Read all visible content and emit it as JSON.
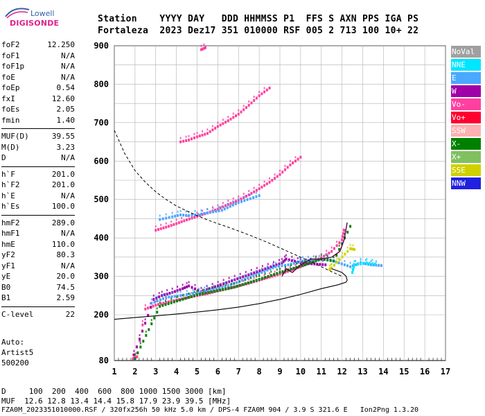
{
  "logo": {
    "line1": "Lowell",
    "line2": "DIGISONDE"
  },
  "header": {
    "row1": "Station    YYYY DAY   DDD HHMMSS P1  FFS S AXN PPS IGA PS",
    "row2": "Fortaleza  2023 Dez17 351 010000 RSF 005 2 713 100 10+ 22"
  },
  "params": [
    {
      "name": "foF2",
      "value": "12.250"
    },
    {
      "name": "foF1",
      "value": "N/A"
    },
    {
      "name": "foF1p",
      "value": "N/A"
    },
    {
      "name": "foE",
      "value": "N/A"
    },
    {
      "name": "foEp",
      "value": "0.54"
    },
    {
      "name": "fxI",
      "value": "12.60"
    },
    {
      "name": "foEs",
      "value": "2.05"
    },
    {
      "name": "fmin",
      "value": "1.40"
    },
    {
      "name": "MUF(D)",
      "value": "39.55"
    },
    {
      "name": "M(D)",
      "value": "3.23"
    },
    {
      "name": "D",
      "value": "N/A"
    },
    {
      "name": "h`F",
      "value": "201.0"
    },
    {
      "name": "h`F2",
      "value": "201.0"
    },
    {
      "name": "h`E",
      "value": "N/A"
    },
    {
      "name": "h`Es",
      "value": "100.0"
    },
    {
      "name": "hmF2",
      "value": "289.0"
    },
    {
      "name": "hmF1",
      "value": "N/A"
    },
    {
      "name": "hmE",
      "value": "110.0"
    },
    {
      "name": "yF2",
      "value": "80.3"
    },
    {
      "name": "yF1",
      "value": "N/A"
    },
    {
      "name": "yE",
      "value": "20.0"
    },
    {
      "name": "B0",
      "value": "74.5"
    },
    {
      "name": "B1",
      "value": "2.59"
    },
    {
      "name": "C-level",
      "value": "22"
    }
  ],
  "auto": {
    "line1": "Auto:",
    "line2": "Artist5",
    "line3": "500200"
  },
  "legend": [
    {
      "label": "NoVal",
      "color": "#a0a0a0"
    },
    {
      "label": "NNE",
      "color": "#00e6ff"
    },
    {
      "label": "E",
      "color": "#4aa8ff"
    },
    {
      "label": "W",
      "color": "#a000a8"
    },
    {
      "label": "Vo-",
      "color": "#ff40a0"
    },
    {
      "label": "Vo+",
      "color": "#ff0030"
    },
    {
      "label": "SSW",
      "color": "#ffb0b0"
    },
    {
      "label": "X-",
      "color": "#008000"
    },
    {
      "label": "X+",
      "color": "#80c060"
    },
    {
      "label": "SSE",
      "color": "#d0d000"
    },
    {
      "label": "NNW",
      "color": "#2020e0"
    }
  ],
  "footer": {
    "d_row": "D     100  200  400  600  800 1000 1500 3000 [km]",
    "muf_row": "MUF  12.6 12.8 13.4 14.4 15.8 17.9 23.9 39.5 [MHz]",
    "file_row": "FZA0M_2023351010000.RSF / 320fx256h 50 kHz 5.0 km / DPS-4 FZA0M 904 / 3.9 S 321.6 E   Ion2Png 1.3.20"
  },
  "chart_data": {
    "type": "scatter",
    "x_ticks": [
      "1",
      "2",
      "3",
      "4",
      "5",
      "6",
      "7",
      "8",
      "9",
      "10",
      "11",
      "12",
      "13",
      "14",
      "15",
      "16",
      "17"
    ],
    "y_ticks": [
      "80",
      "200",
      "300",
      "400",
      "500",
      "600",
      "700",
      "800",
      "900"
    ],
    "xlim": [
      1,
      17
    ],
    "ylim": [
      80,
      900
    ],
    "grid": true,
    "legend_position": "right",
    "series": [
      {
        "color": "#ff40a0",
        "points": [
          [
            1.9,
            85
          ],
          [
            2.1,
            90
          ],
          [
            2.5,
            215
          ],
          [
            3,
            225
          ],
          [
            3.5,
            232
          ],
          [
            4,
            238
          ],
          [
            4.5,
            244
          ],
          [
            5,
            250
          ],
          [
            5.5,
            255
          ],
          [
            6,
            262
          ],
          [
            6.5,
            268
          ],
          [
            7,
            275
          ],
          [
            7.5,
            282
          ],
          [
            8,
            290
          ],
          [
            8.5,
            298
          ],
          [
            9,
            306
          ],
          [
            9.5,
            315
          ],
          [
            10,
            325
          ],
          [
            10.5,
            336
          ],
          [
            11,
            348
          ],
          [
            11.5,
            365
          ],
          [
            12,
            395
          ],
          [
            12.1,
            420
          ]
        ]
      },
      {
        "color": "#a000a8",
        "points": [
          [
            1.95,
            95
          ],
          [
            2.9,
            240
          ],
          [
            3.3,
            250
          ],
          [
            3.8,
            258
          ],
          [
            4.3,
            268
          ],
          [
            4.6,
            275
          ],
          [
            5.2,
            260
          ],
          [
            9.1,
            335
          ],
          [
            9.3,
            345
          ],
          [
            10,
            335
          ],
          [
            11.2,
            330
          ]
        ]
      },
      {
        "color": "#4aa8ff",
        "points": [
          [
            2.8,
            230
          ],
          [
            3.5,
            245
          ],
          [
            4.2,
            250
          ],
          [
            4.8,
            255
          ],
          [
            5.5,
            262
          ],
          [
            6.5,
            275
          ],
          [
            8.8,
            325
          ],
          [
            9.4,
            330
          ],
          [
            10.1,
            340
          ],
          [
            11.3,
            345
          ],
          [
            12.4,
            325
          ],
          [
            12.9,
            335
          ],
          [
            13.4,
            330
          ],
          [
            13.9,
            328
          ]
        ]
      },
      {
        "color": "#00e6ff",
        "points": [
          [
            12.5,
            310
          ],
          [
            12.6,
            330
          ],
          [
            13.2,
            335
          ],
          [
            13.6,
            332
          ]
        ]
      },
      {
        "color": "#008000",
        "points": [
          [
            2.0,
            85
          ],
          [
            3.2,
            222
          ],
          [
            5.0,
            252
          ],
          [
            6.8,
            272
          ],
          [
            8.0,
            292
          ],
          [
            9.0,
            310
          ],
          [
            10.2,
            330
          ],
          [
            11.0,
            345
          ],
          [
            11.6,
            340
          ],
          [
            12.4,
            430
          ]
        ]
      },
      {
        "color": "#d0d000",
        "points": [
          [
            11.4,
            318
          ],
          [
            11.5,
            322
          ],
          [
            12.4,
            372
          ],
          [
            12.6,
            370
          ]
        ]
      },
      {
        "color": "#ff40a0",
        "points": [
          [
            3.0,
            420
          ],
          [
            3.5,
            428
          ],
          [
            4.0,
            437
          ],
          [
            4.5,
            447
          ],
          [
            5.0,
            456
          ],
          [
            5.5,
            465
          ],
          [
            6.0,
            475
          ],
          [
            6.5,
            487
          ],
          [
            7.0,
            498
          ],
          [
            7.5,
            512
          ],
          [
            8.0,
            528
          ],
          [
            8.5,
            545
          ],
          [
            9.0,
            565
          ],
          [
            9.5,
            590
          ],
          [
            10.0,
            610
          ]
        ]
      },
      {
        "color": "#4aa8ff",
        "points": [
          [
            3.2,
            448
          ],
          [
            3.8,
            455
          ],
          [
            4.2,
            460
          ],
          [
            4.6,
            458
          ],
          [
            5.2,
            462
          ],
          [
            6.2,
            472
          ],
          [
            7.0,
            492
          ],
          [
            8.0,
            510
          ]
        ]
      },
      {
        "color": "#ff40a0",
        "points": [
          [
            4.2,
            650
          ],
          [
            4.6,
            655
          ],
          [
            5.0,
            663
          ],
          [
            5.5,
            672
          ],
          [
            6.0,
            690
          ],
          [
            6.5,
            705
          ],
          [
            7.0,
            722
          ],
          [
            7.5,
            745
          ],
          [
            8.0,
            770
          ],
          [
            8.5,
            790
          ]
        ]
      },
      {
        "color": "#ff40a0",
        "points": [
          [
            5.2,
            890
          ],
          [
            5.4,
            895
          ]
        ]
      }
    ],
    "profile_curve": {
      "x": [
        1,
        2,
        3,
        4,
        5,
        6,
        7,
        8,
        9,
        10,
        11,
        11.8,
        12.2,
        12.25,
        12.2,
        12.0,
        11.5
      ],
      "y": [
        188,
        193,
        197,
        202,
        207,
        213,
        220,
        229,
        240,
        253,
        268,
        278,
        285,
        290,
        300,
        310,
        320
      ]
    },
    "trace_curve": {
      "x": [
        9.1,
        9.3,
        9.6,
        10,
        10.5,
        11,
        11.5,
        11.9,
        12.1,
        12.25
      ],
      "y": [
        300,
        320,
        310,
        330,
        345,
        345,
        350,
        365,
        395,
        440
      ]
    },
    "muf_curve": {
      "x": [
        1,
        1.5,
        2,
        2.5,
        3,
        3.5,
        4,
        4.5,
        5,
        5.5,
        6,
        6.5,
        7,
        7.5,
        8,
        8.5,
        9,
        9.5,
        10,
        10.5,
        11,
        11.5,
        12
      ],
      "y": [
        680,
        620,
        575,
        545,
        520,
        500,
        483,
        470,
        458,
        447,
        437,
        428,
        418,
        408,
        397,
        386,
        374,
        362,
        350,
        338,
        325,
        312,
        300
      ]
    }
  }
}
